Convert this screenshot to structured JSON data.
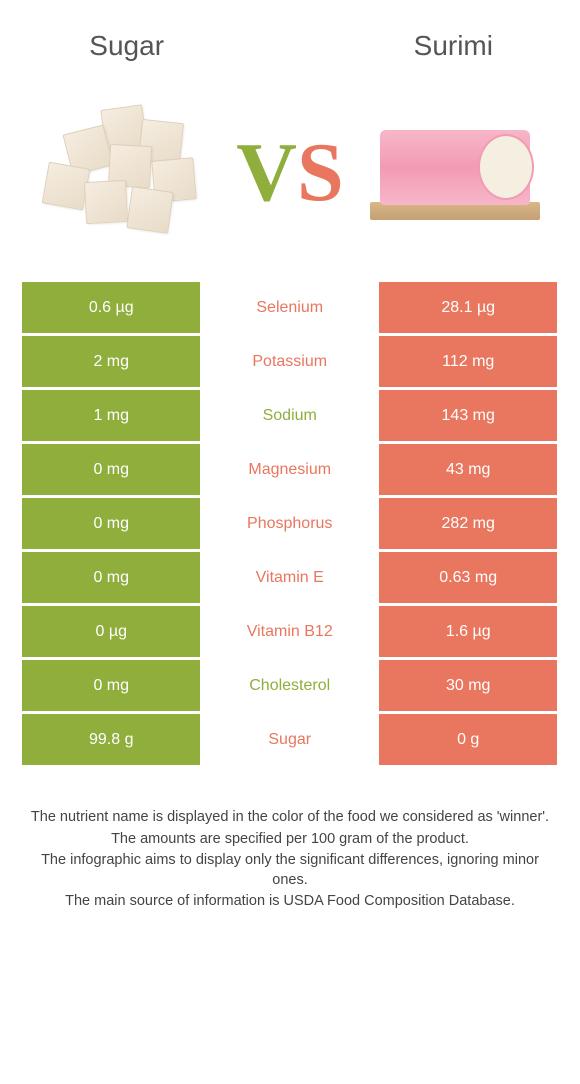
{
  "colors": {
    "left": "#8fae3c",
    "right": "#e9765e",
    "text": "#444444",
    "background": "#ffffff"
  },
  "header": {
    "left_title": "Sugar",
    "right_title": "Surimi",
    "vs_v": "V",
    "vs_s": "S"
  },
  "table": {
    "rows": [
      {
        "left": "0.6 µg",
        "label": "Selenium",
        "right": "28.1 µg",
        "winner": "right"
      },
      {
        "left": "2 mg",
        "label": "Potassium",
        "right": "112 mg",
        "winner": "right"
      },
      {
        "left": "1 mg",
        "label": "Sodium",
        "right": "143 mg",
        "winner": "left"
      },
      {
        "left": "0 mg",
        "label": "Magnesium",
        "right": "43 mg",
        "winner": "right"
      },
      {
        "left": "0 mg",
        "label": "Phosphorus",
        "right": "282 mg",
        "winner": "right"
      },
      {
        "left": "0 mg",
        "label": "Vitamin E",
        "right": "0.63 mg",
        "winner": "right"
      },
      {
        "left": "0 µg",
        "label": "Vitamin B12",
        "right": "1.6 µg",
        "winner": "right"
      },
      {
        "left": "0 mg",
        "label": "Cholesterol",
        "right": "30 mg",
        "winner": "left"
      },
      {
        "left": "99.8 g",
        "label": "Sugar",
        "right": "0 g",
        "winner": "right"
      }
    ]
  },
  "footer": {
    "line1": "The nutrient name is displayed in the color of the food we considered as 'winner'.",
    "line2": "The amounts are specified per 100 gram of the product.",
    "line3": "The infographic aims to display only the significant differences, ignoring minor ones.",
    "line4": "The main source of information is USDA Food Composition Database."
  }
}
